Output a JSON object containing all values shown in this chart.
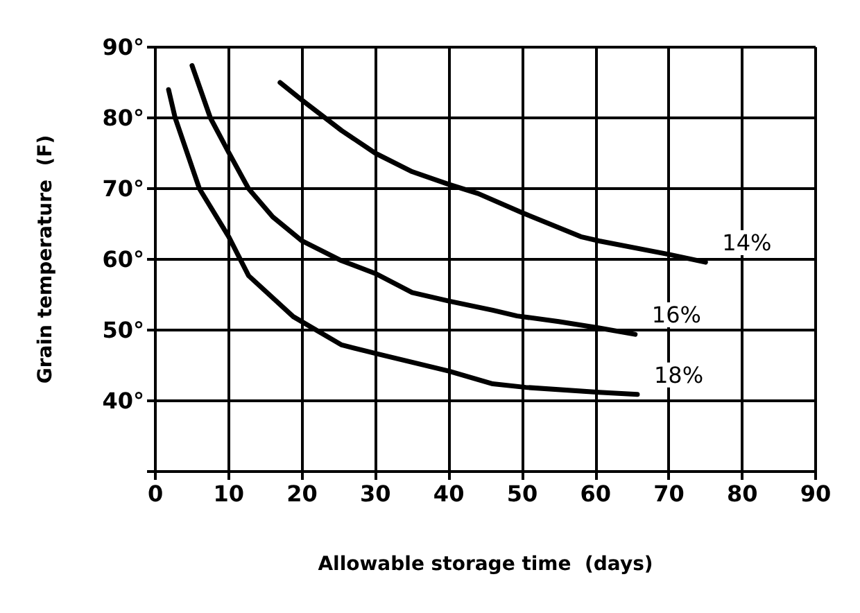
{
  "chart_data": {
    "type": "line",
    "xlabel": "Allowable storage time  (days)",
    "ylabel": "Grain temperature  (F)",
    "xlim": [
      0,
      90
    ],
    "xticks": [
      0,
      10,
      20,
      30,
      40,
      50,
      60,
      70,
      80,
      90
    ],
    "ylim": [
      30,
      90
    ],
    "yticks": [
      {
        "value": 30,
        "label": null
      },
      {
        "value": 40,
        "label": "40°"
      },
      {
        "value": 50,
        "label": "50°"
      },
      {
        "value": 60,
        "label": "60°"
      },
      {
        "value": 70,
        "label": "70°"
      },
      {
        "value": 80,
        "label": "80°"
      },
      {
        "value": 90,
        "label": "90°"
      }
    ],
    "grid": true,
    "legend": false,
    "marker": "none",
    "line_style": "solid",
    "series": [
      {
        "name": "14%",
        "color": "#000000",
        "x": [
          17,
          20,
          25.4,
          30,
          35,
          40,
          44,
          50,
          58,
          60.5,
          70,
          75
        ],
        "values": [
          85,
          82.5,
          78.2,
          75,
          72.4,
          70.6,
          69.3,
          66.6,
          63.2,
          62.6,
          60.7,
          59.6
        ]
      },
      {
        "name": "16%",
        "color": "#000000",
        "x": [
          5,
          7.5,
          10,
          12.7,
          16,
          20,
          25.4,
          30,
          35,
          40,
          46,
          49.3,
          55,
          60.5,
          65.4
        ],
        "values": [
          87.4,
          80,
          75.1,
          70,
          66,
          62.6,
          59.8,
          58,
          55.3,
          54.1,
          52.8,
          52,
          51.2,
          50.3,
          49.4
        ]
      },
      {
        "name": "18%",
        "color": "#000000",
        "x": [
          1.8,
          2.7,
          6,
          10,
          12.7,
          18.8,
          25.4,
          30,
          40,
          46,
          50.5,
          60.5,
          65.7
        ],
        "values": [
          84,
          80,
          70,
          63.2,
          57.7,
          51.9,
          47.9,
          46.7,
          44.2,
          42.4,
          41.9,
          41.2,
          40.9
        ]
      }
    ]
  }
}
